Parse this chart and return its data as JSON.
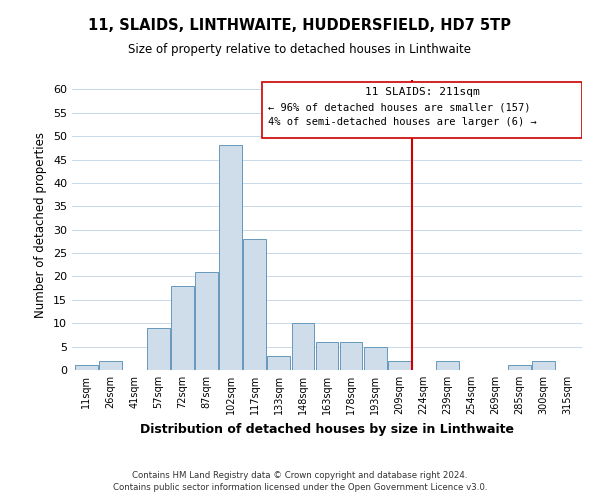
{
  "title": "11, SLAIDS, LINTHWAITE, HUDDERSFIELD, HD7 5TP",
  "subtitle": "Size of property relative to detached houses in Linthwaite",
  "xlabel": "Distribution of detached houses by size in Linthwaite",
  "ylabel": "Number of detached properties",
  "bar_labels": [
    "11sqm",
    "26sqm",
    "41sqm",
    "57sqm",
    "72sqm",
    "87sqm",
    "102sqm",
    "117sqm",
    "133sqm",
    "148sqm",
    "163sqm",
    "178sqm",
    "193sqm",
    "209sqm",
    "224sqm",
    "239sqm",
    "254sqm",
    "269sqm",
    "285sqm",
    "300sqm",
    "315sqm"
  ],
  "bar_values": [
    1,
    2,
    0,
    9,
    18,
    21,
    48,
    28,
    3,
    10,
    6,
    6,
    5,
    2,
    0,
    2,
    0,
    0,
    1,
    2,
    0
  ],
  "bar_color": "#cfdcea",
  "bar_edge_color": "#6699bb",
  "ylim": [
    0,
    62
  ],
  "yticks": [
    0,
    5,
    10,
    15,
    20,
    25,
    30,
    35,
    40,
    45,
    50,
    55,
    60
  ],
  "vline_x_index": 13.55,
  "vline_color": "#cc0000",
  "annotation_title": "11 SLAIDS: 211sqm",
  "annotation_line1": "← 96% of detached houses are smaller (157)",
  "annotation_line2": "4% of semi-detached houses are larger (6) →",
  "footer_line1": "Contains HM Land Registry data © Crown copyright and database right 2024.",
  "footer_line2": "Contains public sector information licensed under the Open Government Licence v3.0.",
  "bg_color": "#ffffff",
  "grid_color": "#c8daea"
}
